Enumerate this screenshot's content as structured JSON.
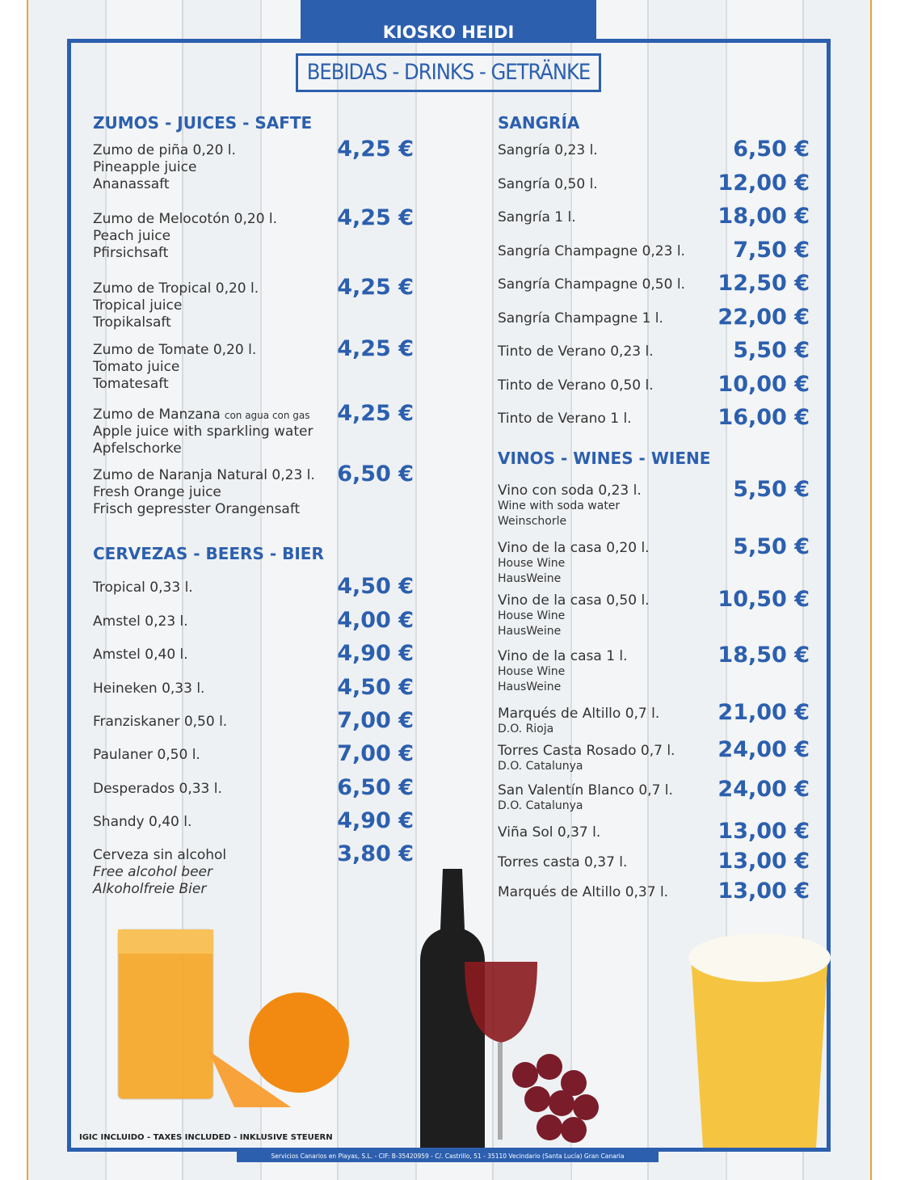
{
  "header": {
    "name": "KIOSKO HEIDI",
    "title": "BEBIDAS - DRINKS - GETRÄNKE"
  },
  "sections": [
    {
      "title": "ZUMOS - JUICES - SAFTE",
      "items": [
        {
          "name": "Zumo de piña 0,20 l.",
          "sub": [
            "Pineapple juice",
            "Ananassaft"
          ],
          "price": "4,25 €"
        },
        {
          "name": "Zumo de Melocotón 0,20 l.",
          "sub": [
            "Peach juice",
            "Pfirsichsaft"
          ],
          "price": "4,25 €"
        },
        {
          "name": "Zumo de Tropical 0,20 l.",
          "sub": [
            "Tropical juice",
            "Tropikalsaft"
          ],
          "price": "4,25 €"
        },
        {
          "name": "Zumo de Tomate 0,20 l.",
          "sub": [
            "Tomato juice",
            "Tomatesaft"
          ],
          "price": "4,25 €"
        },
        {
          "name": "Zumo de Manzana",
          "note": "con agua con gas",
          "sub": [
            "Apple juice with sparkling water",
            "Apfelschorke"
          ],
          "price": "4,25 €"
        },
        {
          "name": "Zumo de Naranja Natural 0,23 l.",
          "sub": [
            "Fresh Orange juice",
            "Frisch gepresster Orangensaft"
          ],
          "price": "6,50 €"
        }
      ]
    },
    {
      "title": "CERVEZAS - BEERS - BIER",
      "items": [
        {
          "name": "Tropical 0,33 l.",
          "price": "4,50 €"
        },
        {
          "name": "Amstel 0,23 l.",
          "price": "4,00 €"
        },
        {
          "name": "Amstel 0,40 l.",
          "price": "4,90 €"
        },
        {
          "name": "Heineken 0,33 l.",
          "price": "4,50 €"
        },
        {
          "name": "Franziskaner 0,50 l.",
          "price": "7,00 €"
        },
        {
          "name": "Paulaner 0,50 l.",
          "price": "7,00 €"
        },
        {
          "name": "Desperados 0,33 l.",
          "price": "6,50 €"
        },
        {
          "name": "Shandy 0,40 l.",
          "price": "4,90 €"
        },
        {
          "name": "Cerveza sin alcohol",
          "sub": [
            "Free alcohol beer",
            "Alkoholfreie Bier"
          ],
          "price": "3,80 €"
        }
      ]
    },
    {
      "title": "SANGRÍA",
      "items": [
        {
          "name": "Sangría 0,23 l.",
          "price": "6,50 €"
        },
        {
          "name": "Sangría 0,50 l.",
          "price": "12,00 €"
        },
        {
          "name": "Sangría 1 l.",
          "price": "18,00 €"
        },
        {
          "name": "Sangría Champagne 0,23 l.",
          "price": "7,50 €"
        },
        {
          "name": "Sangría Champagne 0,50 l.",
          "price": "12,50 €"
        },
        {
          "name": "Sangría Champagne 1 l.",
          "price": "22,00 €"
        },
        {
          "name": "Tinto de Verano 0,23 l.",
          "price": "5,50 €"
        },
        {
          "name": "Tinto de Verano 0,50 l.",
          "price": "10,00 €"
        },
        {
          "name": "Tinto de Verano 1 l.",
          "price": "16,00 €"
        }
      ]
    },
    {
      "title": "VINOS - WINES - WIENE",
      "items": [
        {
          "name": "Vino con soda 0,23 l.",
          "sub": [
            "Wine with soda water",
            "Weinschorle"
          ],
          "price": "5,50 €"
        },
        {
          "name": "Vino de la casa 0,20 l.",
          "sub": [
            "House Wine",
            "HausWeine"
          ],
          "price": "5,50 €"
        },
        {
          "name": "Vino de la casa 0,50 l.",
          "sub": [
            "House Wine",
            "HausWeine"
          ],
          "price": "10,50 €"
        },
        {
          "name": "Vino de la casa 1 l.",
          "sub": [
            "House Wine",
            "HausWeine"
          ],
          "price": "18,50 €"
        },
        {
          "name": "Marqués de Altillo 0,7 l.",
          "sub": [
            "D.O. Rioja"
          ],
          "price": "21,00 €"
        },
        {
          "name": "Torres Casta Rosado 0,7 l.",
          "sub": [
            "D.O. Catalunya"
          ],
          "price": "24,00 €"
        },
        {
          "name": "San Valentín Blanco 0,7 l.",
          "sub": [
            "D.O. Catalunya"
          ],
          "price": "24,00 €"
        },
        {
          "name": "Viña Sol 0,37 l.",
          "price": "13,00 €"
        },
        {
          "name": "Torres casta 0,37 l.",
          "price": "13,00 €"
        },
        {
          "name": "Marqués de Altillo 0,37 l.",
          "price": "13,00 €"
        }
      ]
    }
  ],
  "footer": {
    "taxes": "IGIC INCLUIDO - TAXES INCLUDED - INKLUSIVE STEUERN",
    "company": "Servicios Canarios en Playas, S.L. - CIF: B-35420959 - C/. Castrillo, 51 - 35110 Vecindario (Santa Lucía) Gran Canaria"
  }
}
